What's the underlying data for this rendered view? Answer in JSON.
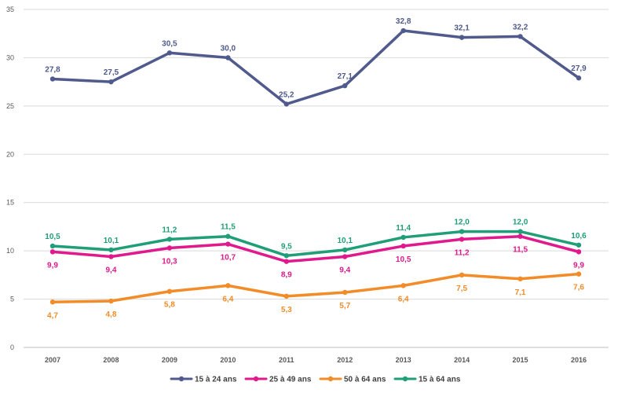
{
  "chart_data": {
    "type": "line",
    "title": "",
    "xlabel": "",
    "ylabel": "",
    "ylim": [
      0,
      35
    ],
    "yticks": [
      0,
      5,
      10,
      15,
      20,
      25,
      30,
      35
    ],
    "categories": [
      "2007",
      "2008",
      "2009",
      "2010",
      "2011",
      "2012",
      "2013",
      "2014",
      "2015",
      "2016"
    ],
    "grid": "horizontal",
    "legend_position": "bottom",
    "series": [
      {
        "name": "15 à 24 ans",
        "color": "#505a8c",
        "label_position": "above",
        "values": [
          27.8,
          27.5,
          30.5,
          30.0,
          25.2,
          27.1,
          32.8,
          32.1,
          32.2,
          27.9
        ],
        "labels": [
          "27,8",
          "27,5",
          "30,5",
          "30,0",
          "25,2",
          "27,1",
          "32,8",
          "32,1",
          "32,2",
          "27,9"
        ]
      },
      {
        "name": "25 à 49 ans",
        "color": "#e0198c",
        "label_position": "below",
        "values": [
          9.9,
          9.4,
          10.3,
          10.7,
          8.9,
          9.4,
          10.5,
          11.2,
          11.5,
          9.9
        ],
        "labels": [
          "9,9",
          "9,4",
          "10,3",
          "10,7",
          "8,9",
          "9,4",
          "10,5",
          "11,2",
          "11,5",
          "9,9"
        ]
      },
      {
        "name": "50 à 64 ans",
        "color": "#f28c28",
        "label_position": "below",
        "values": [
          4.7,
          4.8,
          5.8,
          6.4,
          5.3,
          5.7,
          6.4,
          7.5,
          7.1,
          7.6
        ],
        "labels": [
          "4,7",
          "4,8",
          "5,8",
          "6,4",
          "5,3",
          "5,7",
          "6,4",
          "7,5",
          "7,1",
          "7,6"
        ]
      },
      {
        "name": "15 à 64 ans",
        "color": "#1f9e78",
        "label_position": "above",
        "values": [
          10.5,
          10.1,
          11.2,
          11.5,
          9.5,
          10.1,
          11.4,
          12.0,
          12.0,
          10.6
        ],
        "labels": [
          "10,5",
          "10,1",
          "11,2",
          "11,5",
          "9,5",
          "10,1",
          "11,4",
          "12,0",
          "12,0",
          "10,6"
        ]
      }
    ]
  }
}
